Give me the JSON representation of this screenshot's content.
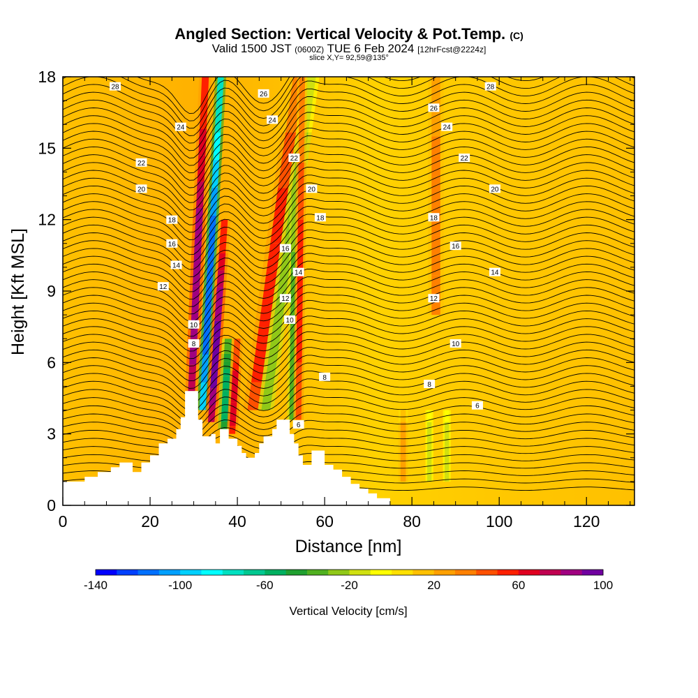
{
  "header": {
    "title": "Angled Section: Vertical Velocity & Pot.Temp.",
    "title_unit": "(C)",
    "valid_prefix": "Valid 1500 JST",
    "valid_zulu": "(0600Z)",
    "valid_date": "TUE 6 Feb 2024",
    "forecast_info": "[12hrFcst@2224z]",
    "slice_info": "slice X,Y= 92,59@135°"
  },
  "chart_data": {
    "type": "heatmap",
    "xlabel": "Distance [nm]",
    "ylabel": "Height [Kft MSL]",
    "xlim": [
      0,
      131
    ],
    "ylim": [
      0,
      18
    ],
    "x_ticks": [
      0,
      20,
      40,
      60,
      80,
      100,
      120
    ],
    "y_ticks": [
      0,
      3,
      6,
      9,
      12,
      15,
      18
    ],
    "colorbar": {
      "label": "Vertical Velocity [cm/s]",
      "range": [
        -140,
        100
      ],
      "step": 10,
      "tick_labels": [
        -140,
        -100,
        -60,
        -20,
        20,
        60,
        100
      ],
      "colors": [
        "#0000ff",
        "#0040ff",
        "#0070ff",
        "#00a0ff",
        "#00d0ff",
        "#00ffff",
        "#00e0c0",
        "#00c890",
        "#00b060",
        "#20a030",
        "#50b020",
        "#90c818",
        "#d0e010",
        "#ffff00",
        "#ffe000",
        "#ffc000",
        "#ffa000",
        "#ff8000",
        "#ff5000",
        "#ff2000",
        "#e00020",
        "#c00050",
        "#a00080",
        "#7000a0"
      ]
    },
    "theta_contours_c": [
      2,
      4,
      6,
      8,
      10,
      12,
      14,
      16,
      18,
      20,
      22,
      24,
      26,
      28
    ],
    "theta_labels": [
      {
        "text": "28",
        "x": 12,
        "y": 17.6
      },
      {
        "text": "26",
        "x": 46,
        "y": 17.3
      },
      {
        "text": "24",
        "x": 27,
        "y": 15.9
      },
      {
        "text": "24",
        "x": 48,
        "y": 16.2
      },
      {
        "text": "22",
        "x": 18,
        "y": 14.4
      },
      {
        "text": "22",
        "x": 53,
        "y": 14.6
      },
      {
        "text": "20",
        "x": 18,
        "y": 13.3
      },
      {
        "text": "20",
        "x": 57,
        "y": 13.3
      },
      {
        "text": "18",
        "x": 25,
        "y": 12.0
      },
      {
        "text": "18",
        "x": 59,
        "y": 12.1
      },
      {
        "text": "16",
        "x": 25,
        "y": 11.0
      },
      {
        "text": "16",
        "x": 51,
        "y": 10.8
      },
      {
        "text": "14",
        "x": 26,
        "y": 10.1
      },
      {
        "text": "14",
        "x": 54,
        "y": 9.8
      },
      {
        "text": "12",
        "x": 23,
        "y": 9.2
      },
      {
        "text": "12",
        "x": 51,
        "y": 8.7
      },
      {
        "text": "10",
        "x": 52,
        "y": 7.8
      },
      {
        "text": "10",
        "x": 30,
        "y": 7.6
      },
      {
        "text": "8",
        "x": 30,
        "y": 6.8
      },
      {
        "text": "8",
        "x": 60,
        "y": 5.4
      },
      {
        "text": "6",
        "x": 54,
        "y": 3.4
      },
      {
        "text": "28",
        "x": 98,
        "y": 17.6
      },
      {
        "text": "26",
        "x": 85,
        "y": 16.7
      },
      {
        "text": "24",
        "x": 88,
        "y": 15.9
      },
      {
        "text": "22",
        "x": 92,
        "y": 14.6
      },
      {
        "text": "20",
        "x": 99,
        "y": 13.3
      },
      {
        "text": "18",
        "x": 85,
        "y": 12.1
      },
      {
        "text": "16",
        "x": 90,
        "y": 10.9
      },
      {
        "text": "14",
        "x": 99,
        "y": 9.8
      },
      {
        "text": "12",
        "x": 85,
        "y": 8.7
      },
      {
        "text": "10",
        "x": 90,
        "y": 6.8
      },
      {
        "text": "8",
        "x": 84,
        "y": 5.1
      },
      {
        "text": "6",
        "x": 95,
        "y": 4.2
      }
    ],
    "terrain_kft": [
      [
        0,
        1.0
      ],
      [
        5,
        1.0
      ],
      [
        5,
        1.2
      ],
      [
        8,
        1.2
      ],
      [
        8,
        1.4
      ],
      [
        11,
        1.4
      ],
      [
        11,
        1.6
      ],
      [
        13,
        1.6
      ],
      [
        13,
        1.8
      ],
      [
        16,
        1.8
      ],
      [
        16,
        1.4
      ],
      [
        18,
        1.4
      ],
      [
        18,
        1.8
      ],
      [
        20,
        1.8
      ],
      [
        20,
        2.1
      ],
      [
        22,
        2.1
      ],
      [
        22,
        2.6
      ],
      [
        24,
        2.6
      ],
      [
        24,
        2.8
      ],
      [
        26,
        2.8
      ],
      [
        26,
        3.2
      ],
      [
        27,
        3.2
      ],
      [
        27,
        3.7
      ],
      [
        28,
        3.7
      ],
      [
        28,
        4.8
      ],
      [
        31,
        4.8
      ],
      [
        31,
        3.6
      ],
      [
        32,
        3.6
      ],
      [
        32,
        2.9
      ],
      [
        34,
        2.9
      ],
      [
        34,
        3.0
      ],
      [
        35,
        3.0
      ],
      [
        35,
        2.6
      ],
      [
        36,
        2.6
      ],
      [
        36,
        3.2
      ],
      [
        38,
        3.2
      ],
      [
        38,
        2.8
      ],
      [
        40,
        2.8
      ],
      [
        40,
        2.5
      ],
      [
        41,
        2.5
      ],
      [
        41,
        2.2
      ],
      [
        42,
        2.2
      ],
      [
        42,
        2.0
      ],
      [
        44,
        2.0
      ],
      [
        44,
        2.2
      ],
      [
        45,
        2.2
      ],
      [
        45,
        2.6
      ],
      [
        46,
        2.6
      ],
      [
        46,
        2.9
      ],
      [
        48,
        2.9
      ],
      [
        48,
        3.2
      ],
      [
        49,
        3.2
      ],
      [
        49,
        3.6
      ],
      [
        52,
        3.6
      ],
      [
        52,
        3.0
      ],
      [
        53,
        3.0
      ],
      [
        53,
        2.6
      ],
      [
        54,
        2.6
      ],
      [
        54,
        2.1
      ],
      [
        55,
        2.1
      ],
      [
        55,
        1.7
      ],
      [
        57,
        1.7
      ],
      [
        57,
        2.3
      ],
      [
        60,
        2.3
      ],
      [
        60,
        1.7
      ],
      [
        62,
        1.7
      ],
      [
        62,
        1.5
      ],
      [
        64,
        1.5
      ],
      [
        64,
        1.2
      ],
      [
        66,
        1.2
      ],
      [
        66,
        0.9
      ],
      [
        68,
        0.9
      ],
      [
        68,
        0.7
      ],
      [
        70,
        0.7
      ],
      [
        70,
        0.5
      ],
      [
        72,
        0.5
      ],
      [
        72,
        0.3
      ],
      [
        75,
        0.3
      ],
      [
        75,
        0.0
      ]
    ],
    "velocity_features": [
      {
        "x": 29.5,
        "y_bottom": 4.8,
        "y_top": 18,
        "tilt": 0.08,
        "width": 1.6,
        "value": 90
      },
      {
        "x": 32.0,
        "y_bottom": 4.0,
        "y_top": 18,
        "tilt": 0.1,
        "width": 1.4,
        "value": -120
      },
      {
        "x": 34.0,
        "y_bottom": 3.5,
        "y_top": 12,
        "tilt": 0.12,
        "width": 1.5,
        "value": 95
      },
      {
        "x": 37.0,
        "y_bottom": 3.2,
        "y_top": 7,
        "tilt": 0.08,
        "width": 1.6,
        "value": -60
      },
      {
        "x": 38.8,
        "y_bottom": 3.0,
        "y_top": 7,
        "tilt": 0.1,
        "width": 1.4,
        "value": 70
      },
      {
        "x": 43.5,
        "y_bottom": 4.0,
        "y_top": 18,
        "tilt": 0.25,
        "width": 2.4,
        "value": 60
      },
      {
        "x": 46.5,
        "y_bottom": 4.0,
        "y_top": 18,
        "tilt": 0.25,
        "width": 2.0,
        "value": -30
      },
      {
        "x": 52.5,
        "y_bottom": 3.6,
        "y_top": 13,
        "tilt": 0.02,
        "width": 1.2,
        "value": -40
      },
      {
        "x": 54.0,
        "y_bottom": 3.6,
        "y_top": 18,
        "tilt": 0.02,
        "width": 1.3,
        "value": 55
      },
      {
        "x": 85.5,
        "y_bottom": 8.0,
        "y_top": 18,
        "tilt": 0.0,
        "width": 2.0,
        "value": 40
      },
      {
        "x": 78.0,
        "y_bottom": 1.0,
        "y_top": 4,
        "tilt": 0.0,
        "width": 1.2,
        "value": 30
      },
      {
        "x": 84.0,
        "y_bottom": 1.0,
        "y_top": 4,
        "tilt": 0.0,
        "width": 1.0,
        "value": -15
      },
      {
        "x": 88.0,
        "y_bottom": 1.0,
        "y_top": 4,
        "tilt": 0.0,
        "width": 1.0,
        "value": -15
      }
    ]
  }
}
